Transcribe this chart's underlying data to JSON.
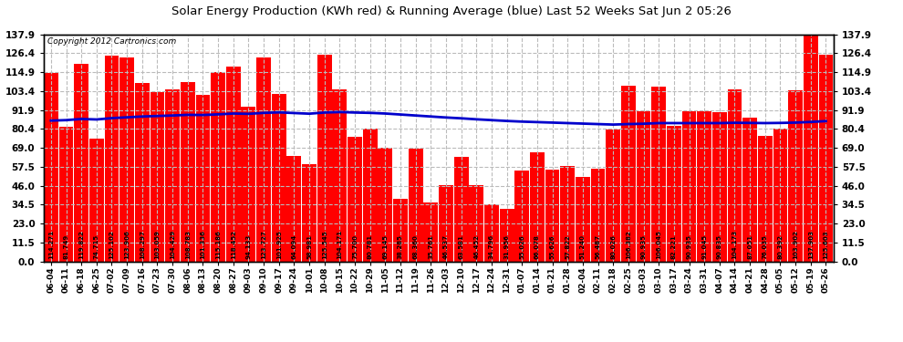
{
  "title": "Solar Energy Production (KWh red) & Running Average (blue) Last 52 Weeks Sat Jun 2 05:26",
  "copyright": "Copyright 2012 Cartronics.com",
  "bar_color": "#ff0000",
  "avg_line_color": "#0000cc",
  "background_color": "#ffffff",
  "plot_bg_color": "#ffffff",
  "grid_color": "#bbbbbb",
  "categories": [
    "06-04",
    "06-11",
    "06-18",
    "06-25",
    "07-02",
    "07-09",
    "07-16",
    "07-23",
    "07-30",
    "08-06",
    "08-13",
    "08-20",
    "08-27",
    "09-03",
    "09-10",
    "09-17",
    "09-24",
    "10-01",
    "10-08",
    "10-15",
    "10-22",
    "10-29",
    "11-05",
    "11-12",
    "11-19",
    "11-26",
    "12-03",
    "12-10",
    "12-17",
    "12-24",
    "12-31",
    "01-07",
    "01-14",
    "01-21",
    "01-28",
    "02-04",
    "02-11",
    "02-18",
    "02-25",
    "03-03",
    "03-10",
    "03-17",
    "03-24",
    "03-31",
    "04-07",
    "04-14",
    "04-21",
    "04-28",
    "05-05",
    "05-12",
    "05-19",
    "05-26"
  ],
  "values": [
    114.271,
    81.749,
    119.822,
    74.715,
    125.102,
    123.906,
    108.297,
    103.059,
    104.429,
    108.783,
    101.336,
    115.186,
    118.452,
    94.133,
    123.727,
    101.925,
    64.094,
    58.981,
    125.545,
    104.171,
    75.7,
    80.781,
    69.145,
    38.285,
    68.36,
    35.761,
    46.537,
    63.581,
    46.452,
    34.796,
    31.956,
    55.026,
    66.078,
    55.626,
    57.822,
    51.24,
    56.487,
    80.026,
    106.382,
    90.935,
    106.045,
    82.221,
    90.935,
    91.045,
    90.835,
    104.173,
    87.051,
    76.035,
    80.392,
    103.902,
    137.903,
    125.603
  ],
  "running_avg": [
    85.5,
    85.8,
    86.5,
    86.2,
    87.0,
    87.5,
    88.0,
    88.3,
    88.6,
    89.0,
    88.9,
    89.3,
    89.8,
    89.6,
    90.2,
    90.5,
    90.1,
    89.7,
    90.4,
    90.7,
    90.4,
    90.2,
    89.8,
    89.2,
    88.6,
    88.0,
    87.4,
    86.9,
    86.3,
    85.8,
    85.3,
    84.9,
    84.6,
    84.3,
    84.0,
    83.7,
    83.4,
    83.1,
    83.4,
    83.6,
    84.0,
    84.0,
    84.0,
    84.0,
    84.0,
    84.2,
    84.1,
    84.0,
    84.1,
    84.3,
    84.7,
    85.2
  ],
  "ylim_max": 137.9,
  "yticks": [
    0.0,
    11.5,
    23.0,
    34.5,
    46.0,
    57.5,
    69.0,
    80.4,
    91.9,
    103.4,
    114.9,
    126.4,
    137.9
  ],
  "label_fontsize": 5.0,
  "tick_fontsize": 7.5,
  "title_fontsize": 9.5,
  "copyright_fontsize": 6.5
}
